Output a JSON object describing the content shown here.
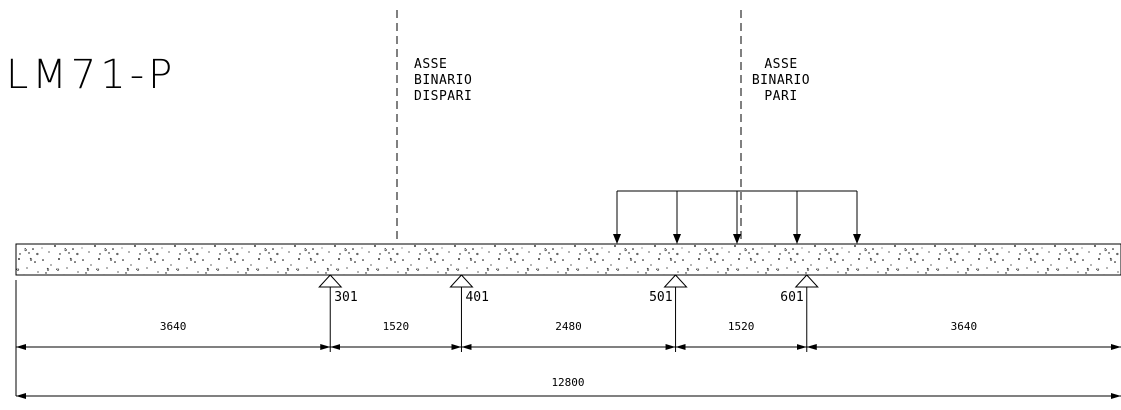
{
  "title": "LM71-P",
  "axis_labels": {
    "dispari": [
      "ASSE",
      "BINARIO",
      "DISPARI"
    ],
    "pari": [
      "ASSE",
      "BINARIO",
      "PARI"
    ]
  },
  "supports": [
    "301",
    "401",
    "501",
    "601"
  ],
  "spans": [
    "3640",
    "1520",
    "2480",
    "1520",
    "3640"
  ],
  "span_values": [
    3640,
    1520,
    2480,
    1520,
    3640
  ],
  "total": "12800",
  "load_count": 5,
  "colors": {
    "line": "#000000",
    "background": "#ffffff"
  }
}
